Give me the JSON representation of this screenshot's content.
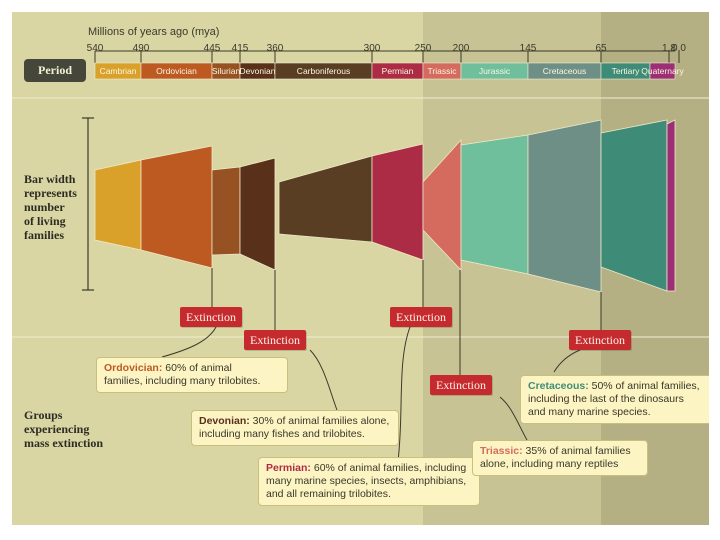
{
  "scale": {
    "title": "Millions of years ago (mya)",
    "ticks": [
      "540",
      "490",
      "445",
      "415",
      "360",
      "300",
      "250",
      "200",
      "145",
      "65",
      "1.8",
      "0.0"
    ]
  },
  "period_label": "Period",
  "periods": [
    {
      "name": "Cambrian",
      "color": "#d9a12a"
    },
    {
      "name": "Ordovician",
      "color": "#bd5a22"
    },
    {
      "name": "Silurian",
      "color": "#975223"
    },
    {
      "name": "Devonian",
      "color": "#59301a"
    },
    {
      "name": "Carboniferous",
      "color": "#5a3e24"
    },
    {
      "name": "Permian",
      "color": "#ad2c45"
    },
    {
      "name": "Triassic",
      "color": "#d56a5f"
    },
    {
      "name": "Jurassic",
      "color": "#6fbf9c"
    },
    {
      "name": "Cretaceous",
      "color": "#6d8f86"
    },
    {
      "name": "Tertiary",
      "color": "#3e8c78"
    },
    {
      "name": "Quaternary",
      "color": "#9b2e75"
    }
  ],
  "bar_width_label": "Bar width\nrepresents\nnumber\nof living\nfamilies",
  "groups_label": "Groups\nexperiencing\nmass extinction",
  "extinction_label": "Extinction",
  "callouts": {
    "ordovician": {
      "period": "Ordovician:",
      "text": " 60% of animal\nfamilies, including many trilobites."
    },
    "devonian": {
      "period": "Devonian:",
      "text": " 30% of animal families alone,\nincluding many fishes and trilobites."
    },
    "permian": {
      "period": "Permian:",
      "text": " 60% of animal families, including\nmany marine species, insects, amphibians,\nand all remaining trilobites."
    },
    "triassic": {
      "period": "Triassic:",
      "text": " 35% of animal families\nalone, including many reptiles"
    },
    "cretaceous": {
      "period": "Cretaceous:",
      "text": " 50% of animal families,\nincluding the last of the dinosaurs\nand many marine species."
    }
  },
  "colors": {
    "paleozoic_bg": "#d9d6a4",
    "mesozoic_bg": "#c7c394",
    "cenozoic_bg": "#b5b083",
    "extinction_red": "#c42a2e",
    "callout_bg": "#fcf4c3"
  }
}
